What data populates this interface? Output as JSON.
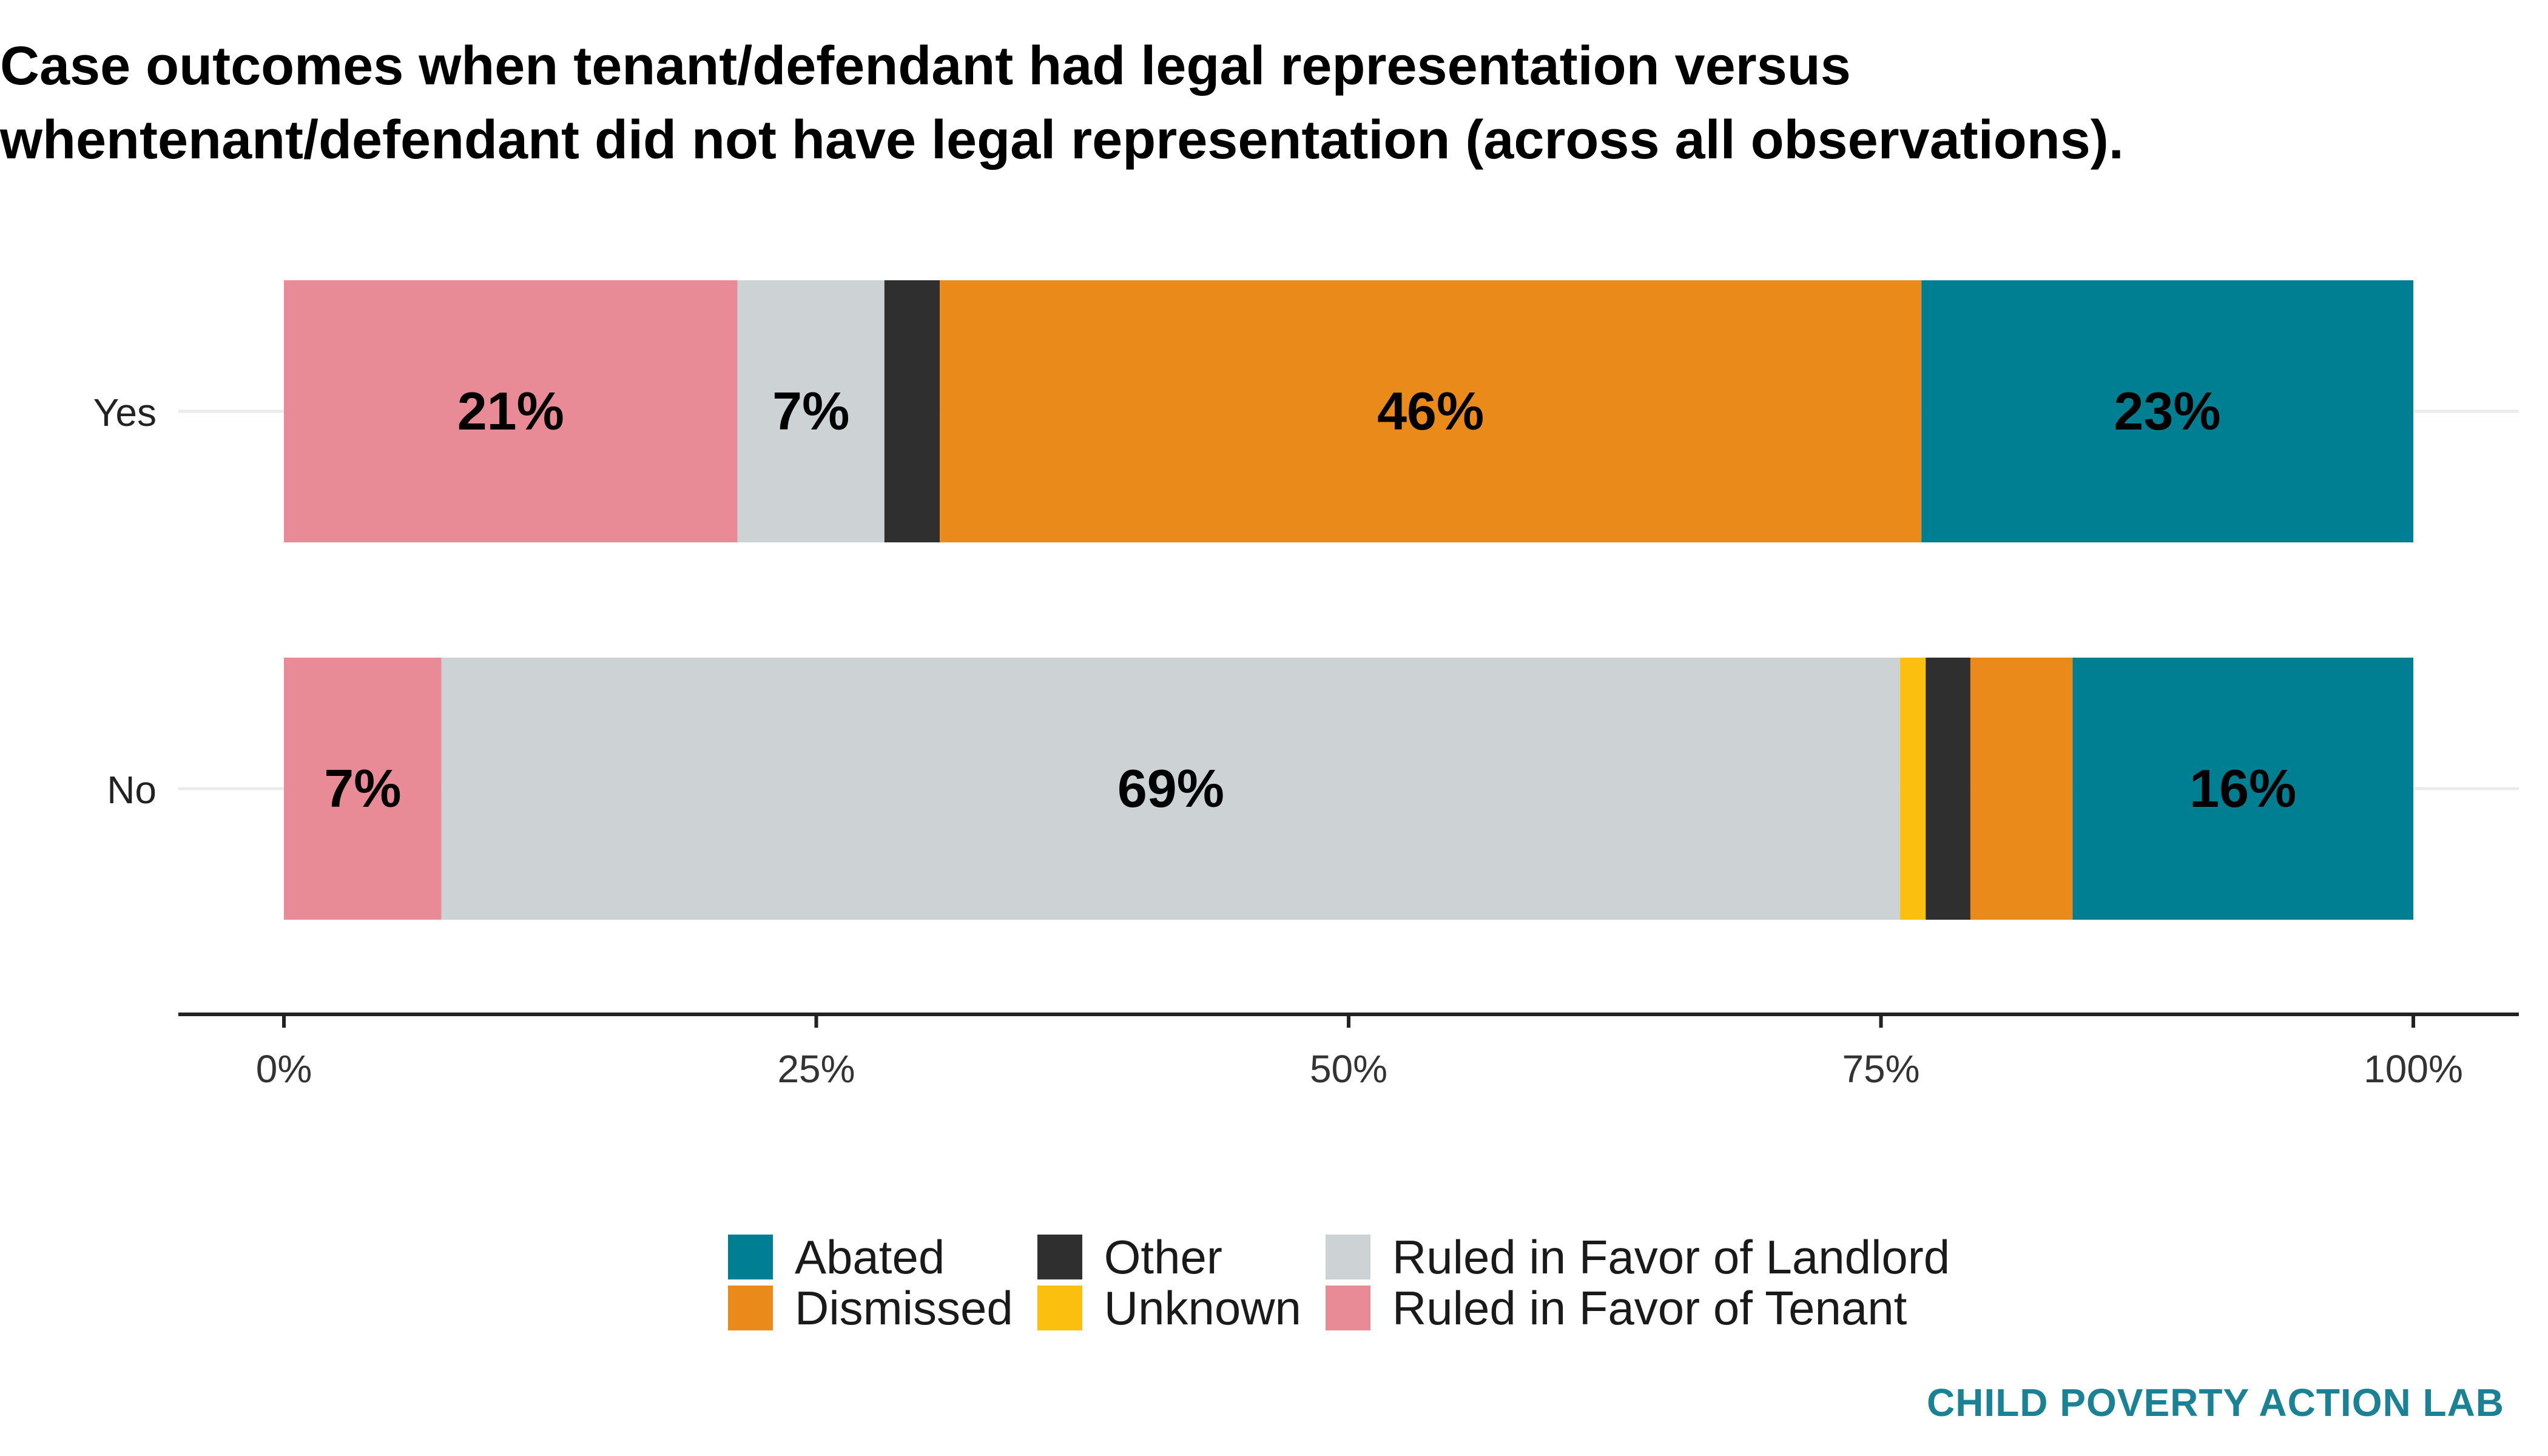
{
  "chart_data": {
    "type": "bar",
    "orientation": "horizontal",
    "stacked": true,
    "title": "Case outcomes when tenant/defendant had legal representation versus whentenant/defendant did not have legal representation (across all observations).",
    "categories": [
      "Yes",
      "No"
    ],
    "xlim": [
      0,
      100
    ],
    "x_ticks": [
      "0%",
      "25%",
      "50%",
      "75%",
      "100%"
    ],
    "x_tick_values": [
      0,
      25,
      50,
      75,
      100
    ],
    "grid": "horizontal major lines at categories",
    "legend_position": "bottom",
    "series": [
      {
        "name": "Ruled in Favor of Tenant",
        "color": "#e98b96",
        "values": [
          21.3,
          7.4
        ],
        "labels": [
          "21%",
          "7%"
        ]
      },
      {
        "name": "Ruled in Favor of Landlord",
        "color": "#cdd3d5",
        "values": [
          6.9,
          68.5
        ],
        "labels": [
          "7%",
          "69%"
        ]
      },
      {
        "name": "Unknown",
        "color": "#fbbf0f",
        "values": [
          0,
          1.2
        ],
        "labels": [
          "",
          ""
        ]
      },
      {
        "name": "Other",
        "color": "#2f2f2f",
        "values": [
          2.6,
          2.1
        ],
        "labels": [
          "",
          ""
        ]
      },
      {
        "name": "Dismissed",
        "color": "#e98a1a",
        "values": [
          46.1,
          4.8
        ],
        "labels": [
          "46%",
          ""
        ]
      },
      {
        "name": "Abated",
        "color": "#007f92",
        "values": [
          23.1,
          16.0
        ],
        "labels": [
          "23%",
          "16%"
        ]
      }
    ]
  },
  "legend": {
    "order": [
      "Abated",
      "Other",
      "Ruled in Favor of Landlord",
      "Dismissed",
      "Unknown",
      "Ruled in Favor of Tenant"
    ]
  },
  "caption": "CHILD POVERTY ACTION LAB"
}
